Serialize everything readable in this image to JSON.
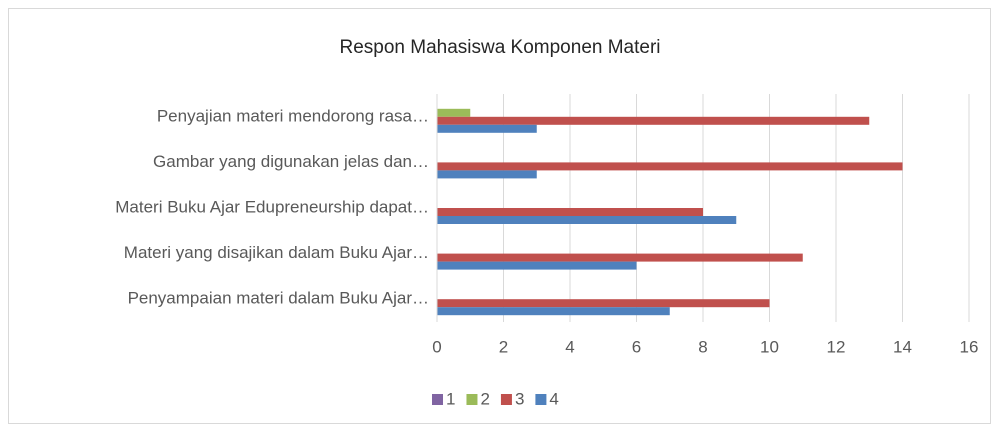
{
  "chart_data": {
    "type": "bar",
    "orientation": "horizontal",
    "title": "Respon Mahasiswa Komponen Materi",
    "categories": [
      "Penyajian materi mendorong rasa…",
      "Gambar yang digunakan jelas dan…",
      "Materi Buku Ajar Edupreneurship dapat…",
      "Materi yang disajikan dalam Buku Ajar…",
      "Penyampaian materi dalam Buku Ajar…"
    ],
    "series": [
      {
        "name": "1",
        "color": "#8064a2",
        "values": [
          0,
          0,
          0,
          0,
          0
        ]
      },
      {
        "name": "2",
        "color": "#9bbb59",
        "values": [
          1,
          0,
          0,
          0,
          0
        ]
      },
      {
        "name": "3",
        "color": "#c0504d",
        "values": [
          13,
          14,
          8,
          11,
          10
        ]
      },
      {
        "name": "4",
        "color": "#4f81bd",
        "values": [
          3,
          3,
          9,
          6,
          7
        ]
      }
    ],
    "xlim": [
      0,
      16
    ],
    "xticks": [
      0,
      2,
      4,
      6,
      8,
      10,
      12,
      14,
      16
    ],
    "grid": true,
    "legend": "bottom"
  }
}
